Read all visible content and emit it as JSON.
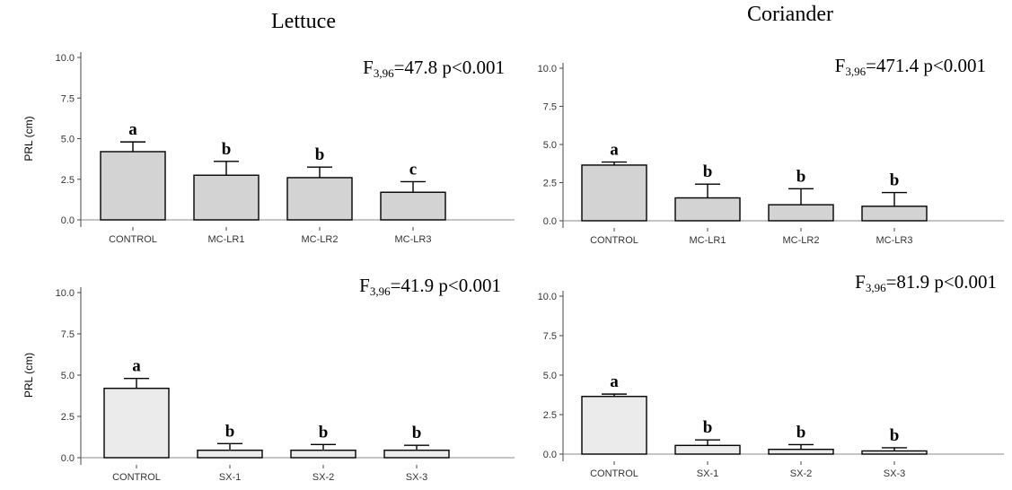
{
  "column_titles": [
    "Lettuce",
    "Coriander"
  ],
  "colors": {
    "bar_fill_top": "#d3d3d3",
    "bar_fill_bottom": "#ebebeb",
    "bar_stroke": "#000000",
    "zero_line": "#888888"
  },
  "chart_data": [
    {
      "type": "bar",
      "column_title": "Lettuce",
      "ylabel": "PRL (cm)",
      "ylim": [
        0,
        10
      ],
      "yticks": [
        "0.0",
        "2.5",
        "5.0",
        "7.5",
        "10.0"
      ],
      "categories": [
        "CONTROL",
        "MC-LR1",
        "MC-LR2",
        "MC-LR3"
      ],
      "values": [
        4.2,
        2.75,
        2.6,
        1.7
      ],
      "errors": [
        0.6,
        0.85,
        0.65,
        0.65
      ],
      "letters": [
        "a",
        "b",
        "b",
        "c"
      ],
      "stat": {
        "F": "F",
        "sub": "3,96",
        "value": "=47.8",
        "p": "p<0.001"
      }
    },
    {
      "type": "bar",
      "column_title": "Coriander",
      "ylabel": "",
      "ylim": [
        0,
        10
      ],
      "yticks": [
        "0.0",
        "2.5",
        "5.0",
        "7.5",
        "10.0"
      ],
      "categories": [
        "CONTROL",
        "MC-LR1",
        "MC-LR2",
        "MC-LR3"
      ],
      "values": [
        3.65,
        1.5,
        1.05,
        0.95
      ],
      "errors": [
        0.2,
        0.9,
        1.05,
        0.9
      ],
      "letters": [
        "a",
        "b",
        "b",
        "b"
      ],
      "stat": {
        "F": "F",
        "sub": "3,96",
        "value": "=471.4",
        "p": "p<0.001"
      }
    },
    {
      "type": "bar",
      "column_title": "Lettuce",
      "ylabel": "PRL (cm)",
      "ylim": [
        0,
        10
      ],
      "yticks": [
        "0.0",
        "2.5",
        "5.0",
        "7.5",
        "10.0"
      ],
      "categories": [
        "CONTROL",
        "SX-1",
        "SX-2",
        "SX-3"
      ],
      "values": [
        4.2,
        0.45,
        0.45,
        0.45
      ],
      "errors": [
        0.6,
        0.4,
        0.35,
        0.3
      ],
      "letters": [
        "a",
        "b",
        "b",
        "b"
      ],
      "stat": {
        "F": "F",
        "sub": "3,96",
        "value": "=41.9",
        "p": "p<0.001"
      }
    },
    {
      "type": "bar",
      "column_title": "Coriander",
      "ylabel": "",
      "ylim": [
        0,
        10
      ],
      "yticks": [
        "0.0",
        "2.5",
        "5.0",
        "7.5",
        "10.0"
      ],
      "categories": [
        "CONTROL",
        "SX-1",
        "SX-2",
        "SX-3"
      ],
      "values": [
        3.65,
        0.55,
        0.3,
        0.2
      ],
      "errors": [
        0.15,
        0.35,
        0.3,
        0.2
      ],
      "letters": [
        "a",
        "b",
        "b",
        "b"
      ],
      "stat": {
        "F": "F",
        "sub": "3,96",
        "value": "=81.9",
        "p": "p<0.001"
      }
    }
  ]
}
